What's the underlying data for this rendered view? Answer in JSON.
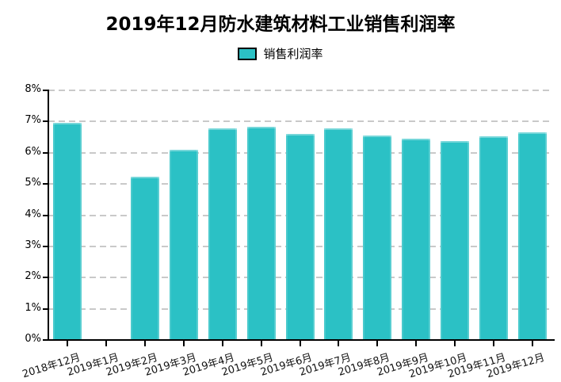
{
  "chart_data": {
    "type": "bar",
    "title": "2019年12月防水建筑材料工业销售利润率",
    "legend_label": "销售利润率",
    "legend_position": "top-center",
    "categories": [
      "2018年12月",
      "2019年1月",
      "2019年2月",
      "2019年3月",
      "2019年4月",
      "2019年5月",
      "2019年6月",
      "2019年7月",
      "2019年8月",
      "2019年9月",
      "2019年10月",
      "2019年11月",
      "2019年12月"
    ],
    "values": [
      6.95,
      null,
      5.22,
      6.1,
      6.78,
      6.82,
      6.6,
      6.77,
      6.55,
      6.45,
      6.37,
      6.52,
      6.66
    ],
    "unit": "%",
    "xlabel": "",
    "ylabel": "",
    "ylim": [
      0,
      8
    ],
    "ytick_step": 1,
    "yticklabels": [
      "0%",
      "1%",
      "2%",
      "3%",
      "4%",
      "5%",
      "6%",
      "7%",
      "8%"
    ],
    "grid": true,
    "gridline_style": "dashed",
    "gridline_color": "#c9c9c9",
    "axis_color": "#000000",
    "bar_color": "#2BC1C5",
    "background": "#ffffff",
    "missing_categories": [
      "2019年1月"
    ]
  }
}
